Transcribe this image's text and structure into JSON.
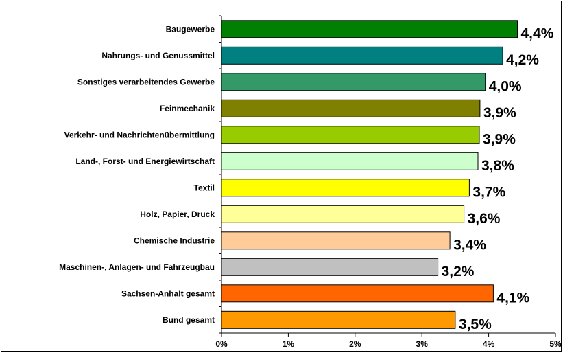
{
  "chart_data": {
    "type": "bar",
    "orientation": "horizontal",
    "categories": [
      "Baugewerbe",
      "Nahrungs- und Genussmittel",
      "Sonstiges verarbeitendes Gewerbe",
      "Feinmechanik",
      "Verkehr- und Nachrichtenübermittlung",
      "Land-, Forst- und Energiewirtschaft",
      "Textil",
      "Holz, Papier, Druck",
      "Chemische Industrie",
      "Maschinen-, Anlagen- und Fahrzeugbau",
      "Sachsen-Anhalt gesamt",
      "Bund gesamt"
    ],
    "values": [
      4.43,
      4.21,
      3.95,
      3.87,
      3.86,
      3.84,
      3.71,
      3.63,
      3.42,
      3.24,
      4.07,
      3.5
    ],
    "value_labels": [
      "4,4%",
      "4,2%",
      "4,0%",
      "3,9%",
      "3,9%",
      "3,8%",
      "3,7%",
      "3,6%",
      "3,4%",
      "3,2%",
      "4,1%",
      "3,5%"
    ],
    "bar_colors": [
      "#008000",
      "#008080",
      "#339966",
      "#808000",
      "#99CC00",
      "#CCFFCC",
      "#FFFF00",
      "#FFFF99",
      "#FFCC99",
      "#C0C0C0",
      "#FF6600",
      "#FF9900"
    ],
    "xlim": [
      0,
      5
    ],
    "xticks": [
      0,
      1,
      2,
      3,
      4,
      5
    ],
    "xtick_labels": [
      "0%",
      "1%",
      "2%",
      "3%",
      "4%",
      "5%"
    ],
    "xlabel": "",
    "ylabel": "",
    "title": "",
    "grid": false,
    "legend": "none"
  }
}
